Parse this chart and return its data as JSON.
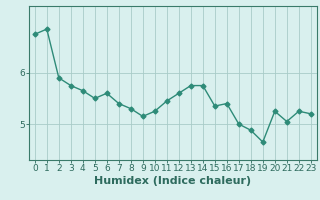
{
  "x": [
    0,
    1,
    2,
    3,
    4,
    5,
    6,
    7,
    8,
    9,
    10,
    11,
    12,
    13,
    14,
    15,
    16,
    17,
    18,
    19,
    20,
    21,
    22,
    23
  ],
  "y": [
    6.75,
    6.85,
    5.9,
    5.75,
    5.65,
    5.5,
    5.6,
    5.4,
    5.3,
    5.15,
    5.25,
    5.45,
    5.6,
    5.75,
    5.75,
    5.35,
    5.4,
    5.0,
    4.88,
    4.65,
    5.25,
    5.05,
    5.25,
    5.2
  ],
  "line_color": "#2e8b78",
  "marker": "D",
  "marker_size": 2.5,
  "line_width": 1.0,
  "bg_color": "#d9f0ee",
  "grid_color": "#a8ccc8",
  "xlabel": "Humidex (Indice chaleur)",
  "xlabel_fontsize": 8,
  "xlabel_fontweight": "bold",
  "yticks": [
    5,
    6
  ],
  "ylim": [
    4.3,
    7.3
  ],
  "xlim": [
    -0.5,
    23.5
  ],
  "xtick_labels": [
    "0",
    "1",
    "2",
    "3",
    "4",
    "5",
    "6",
    "7",
    "8",
    "9",
    "10",
    "11",
    "12",
    "13",
    "14",
    "15",
    "16",
    "17",
    "18",
    "19",
    "20",
    "21",
    "22",
    "23"
  ],
  "tick_fontsize": 6.5,
  "tick_color": "#2e6b5e",
  "axis_color": "#3a7a6a"
}
